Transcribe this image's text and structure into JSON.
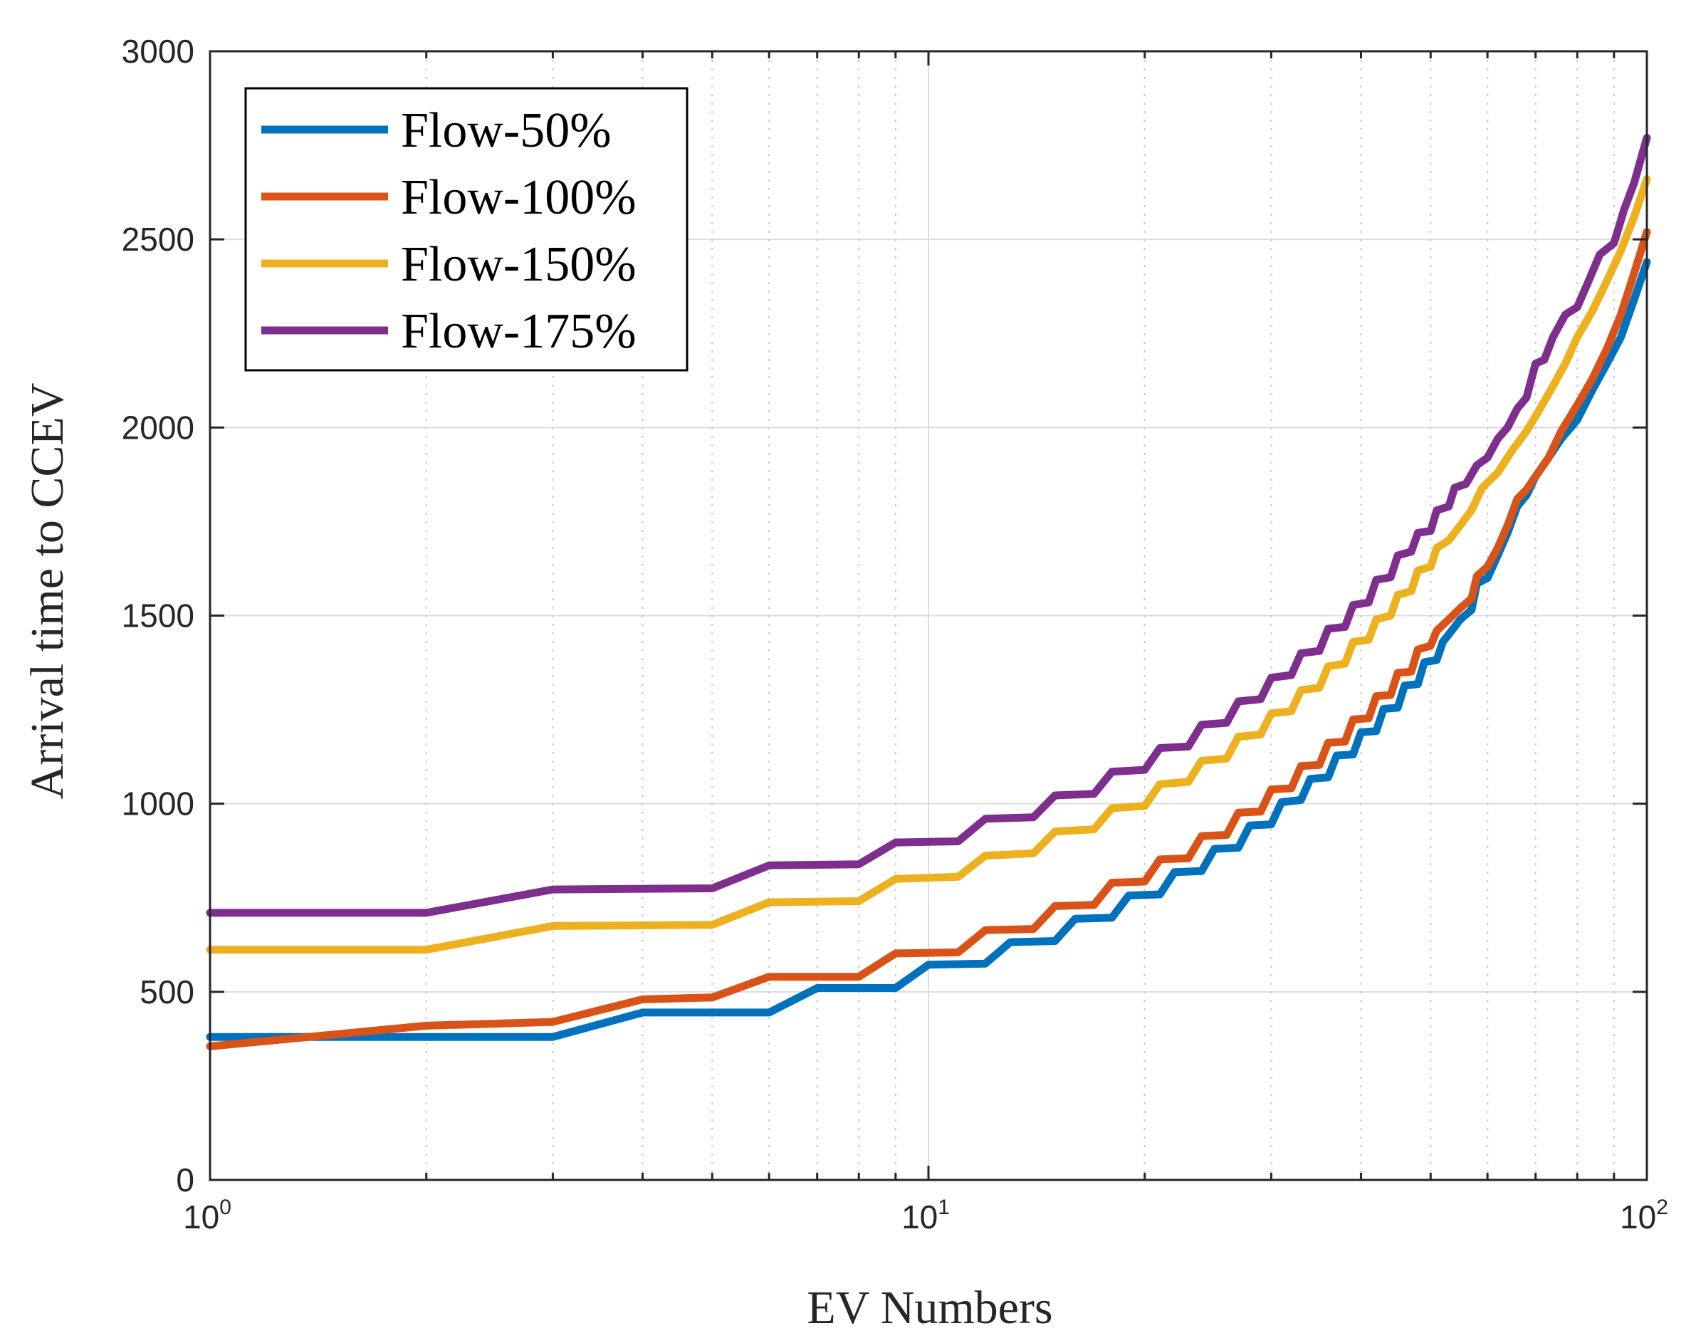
{
  "chart_data": {
    "type": "line",
    "title": "",
    "xlabel": "EV Numbers",
    "ylabel": "Arrival time to CCEV",
    "xscale": "log",
    "xlim": [
      1,
      100
    ],
    "ylim": [
      0,
      3000
    ],
    "grid": true,
    "minor_grid_x": true,
    "legend_position": "top-left",
    "x_ticks": [
      {
        "value": 1,
        "base": "10",
        "exp": "0"
      },
      {
        "value": 10,
        "base": "10",
        "exp": "1"
      },
      {
        "value": 100,
        "base": "10",
        "exp": "2"
      }
    ],
    "y_ticks": [
      {
        "value": 0,
        "label": "0"
      },
      {
        "value": 500,
        "label": "500"
      },
      {
        "value": 1000,
        "label": "1000"
      },
      {
        "value": 1500,
        "label": "1500"
      },
      {
        "value": 2000,
        "label": "2000"
      },
      {
        "value": 2500,
        "label": "2500"
      },
      {
        "value": 3000,
        "label": "3000"
      }
    ],
    "series": [
      {
        "name": "Flow-50%",
        "color": "#0072BD",
        "points": [
          [
            1,
            380
          ],
          [
            3,
            380
          ],
          [
            4,
            445
          ],
          [
            6,
            445
          ],
          [
            7,
            510
          ],
          [
            9,
            510
          ],
          [
            10,
            572
          ],
          [
            12,
            575
          ],
          [
            13,
            632
          ],
          [
            15,
            635
          ],
          [
            16,
            694
          ],
          [
            18,
            697
          ],
          [
            19,
            756
          ],
          [
            21,
            759
          ],
          [
            22,
            818
          ],
          [
            24,
            821
          ],
          [
            25,
            880
          ],
          [
            27,
            883
          ],
          [
            28,
            942
          ],
          [
            30,
            945
          ],
          [
            31,
            1004
          ],
          [
            33,
            1010
          ],
          [
            34,
            1066
          ],
          [
            36,
            1070
          ],
          [
            37,
            1128
          ],
          [
            39,
            1131
          ],
          [
            40,
            1190
          ],
          [
            42,
            1193
          ],
          [
            43,
            1252
          ],
          [
            45,
            1255
          ],
          [
            46,
            1314
          ],
          [
            48,
            1318
          ],
          [
            49,
            1376
          ],
          [
            51,
            1382
          ],
          [
            52,
            1430
          ],
          [
            54,
            1470
          ],
          [
            55,
            1490
          ],
          [
            57,
            1515
          ],
          [
            58,
            1585
          ],
          [
            60,
            1600
          ],
          [
            62,
            1660
          ],
          [
            64,
            1720
          ],
          [
            66,
            1790
          ],
          [
            68,
            1820
          ],
          [
            70,
            1870
          ],
          [
            73,
            1920
          ],
          [
            76,
            1970
          ],
          [
            80,
            2020
          ],
          [
            84,
            2100
          ],
          [
            88,
            2170
          ],
          [
            92,
            2240
          ],
          [
            96,
            2340
          ],
          [
            100,
            2440
          ]
        ]
      },
      {
        "name": "Flow-100%",
        "color": "#D95319",
        "points": [
          [
            1,
            355
          ],
          [
            2,
            410
          ],
          [
            3,
            420
          ],
          [
            4,
            480
          ],
          [
            5,
            485
          ],
          [
            6,
            540
          ],
          [
            8,
            540
          ],
          [
            9,
            602
          ],
          [
            11,
            605
          ],
          [
            12,
            664
          ],
          [
            14,
            667
          ],
          [
            15,
            728
          ],
          [
            17,
            731
          ],
          [
            18,
            790
          ],
          [
            20,
            793
          ],
          [
            21,
            852
          ],
          [
            23,
            855
          ],
          [
            24,
            914
          ],
          [
            26,
            917
          ],
          [
            27,
            976
          ],
          [
            29,
            979
          ],
          [
            30,
            1038
          ],
          [
            32,
            1041
          ],
          [
            33,
            1100
          ],
          [
            35,
            1103
          ],
          [
            36,
            1162
          ],
          [
            38,
            1165
          ],
          [
            39,
            1224
          ],
          [
            41,
            1227
          ],
          [
            42,
            1286
          ],
          [
            44,
            1289
          ],
          [
            45,
            1348
          ],
          [
            47,
            1351
          ],
          [
            48,
            1410
          ],
          [
            50,
            1420
          ],
          [
            51,
            1460
          ],
          [
            53,
            1490
          ],
          [
            55,
            1520
          ],
          [
            57,
            1545
          ],
          [
            58,
            1605
          ],
          [
            60,
            1630
          ],
          [
            62,
            1680
          ],
          [
            64,
            1740
          ],
          [
            66,
            1810
          ],
          [
            68,
            1835
          ],
          [
            70,
            1870
          ],
          [
            73,
            1920
          ],
          [
            76,
            1990
          ],
          [
            80,
            2060
          ],
          [
            84,
            2130
          ],
          [
            88,
            2210
          ],
          [
            92,
            2300
          ],
          [
            96,
            2410
          ],
          [
            100,
            2520
          ]
        ]
      },
      {
        "name": "Flow-150%",
        "color": "#EDB120",
        "points": [
          [
            1,
            612
          ],
          [
            2,
            612
          ],
          [
            3,
            675
          ],
          [
            5,
            678
          ],
          [
            6,
            738
          ],
          [
            8,
            741
          ],
          [
            9,
            800
          ],
          [
            11,
            806
          ],
          [
            12,
            862
          ],
          [
            14,
            868
          ],
          [
            15,
            926
          ],
          [
            17,
            932
          ],
          [
            18,
            988
          ],
          [
            20,
            994
          ],
          [
            21,
            1052
          ],
          [
            23,
            1058
          ],
          [
            24,
            1114
          ],
          [
            26,
            1120
          ],
          [
            27,
            1178
          ],
          [
            29,
            1184
          ],
          [
            30,
            1240
          ],
          [
            32,
            1246
          ],
          [
            33,
            1302
          ],
          [
            35,
            1308
          ],
          [
            36,
            1365
          ],
          [
            38,
            1372
          ],
          [
            39,
            1430
          ],
          [
            41,
            1436
          ],
          [
            42,
            1490
          ],
          [
            44,
            1500
          ],
          [
            45,
            1555
          ],
          [
            47,
            1565
          ],
          [
            48,
            1620
          ],
          [
            50,
            1630
          ],
          [
            51,
            1680
          ],
          [
            53,
            1700
          ],
          [
            55,
            1740
          ],
          [
            57,
            1780
          ],
          [
            59,
            1840
          ],
          [
            62,
            1880
          ],
          [
            65,
            1940
          ],
          [
            68,
            1990
          ],
          [
            71,
            2050
          ],
          [
            74,
            2110
          ],
          [
            77,
            2170
          ],
          [
            80,
            2240
          ],
          [
            84,
            2310
          ],
          [
            88,
            2390
          ],
          [
            92,
            2470
          ],
          [
            96,
            2560
          ],
          [
            100,
            2660
          ]
        ]
      },
      {
        "name": "Flow-175%",
        "color": "#7E2F8E",
        "points": [
          [
            1,
            710
          ],
          [
            2,
            710
          ],
          [
            3,
            772
          ],
          [
            5,
            775
          ],
          [
            6,
            836
          ],
          [
            8,
            839
          ],
          [
            9,
            897
          ],
          [
            11,
            900
          ],
          [
            12,
            960
          ],
          [
            14,
            964
          ],
          [
            15,
            1022
          ],
          [
            17,
            1026
          ],
          [
            18,
            1085
          ],
          [
            20,
            1090
          ],
          [
            21,
            1148
          ],
          [
            23,
            1152
          ],
          [
            24,
            1210
          ],
          [
            26,
            1215
          ],
          [
            27,
            1272
          ],
          [
            29,
            1278
          ],
          [
            30,
            1335
          ],
          [
            32,
            1342
          ],
          [
            33,
            1400
          ],
          [
            35,
            1406
          ],
          [
            36,
            1465
          ],
          [
            38,
            1470
          ],
          [
            39,
            1528
          ],
          [
            41,
            1535
          ],
          [
            42,
            1595
          ],
          [
            44,
            1602
          ],
          [
            45,
            1660
          ],
          [
            47,
            1670
          ],
          [
            48,
            1720
          ],
          [
            50,
            1725
          ],
          [
            51,
            1780
          ],
          [
            53,
            1790
          ],
          [
            54,
            1840
          ],
          [
            56,
            1850
          ],
          [
            58,
            1900
          ],
          [
            60,
            1920
          ],
          [
            62,
            1970
          ],
          [
            64,
            2000
          ],
          [
            66,
            2050
          ],
          [
            68,
            2080
          ],
          [
            70,
            2170
          ],
          [
            72,
            2180
          ],
          [
            74,
            2240
          ],
          [
            77,
            2300
          ],
          [
            80,
            2320
          ],
          [
            83,
            2390
          ],
          [
            86,
            2460
          ],
          [
            90,
            2490
          ],
          [
            93,
            2580
          ],
          [
            96,
            2650
          ],
          [
            100,
            2770
          ]
        ]
      }
    ]
  }
}
